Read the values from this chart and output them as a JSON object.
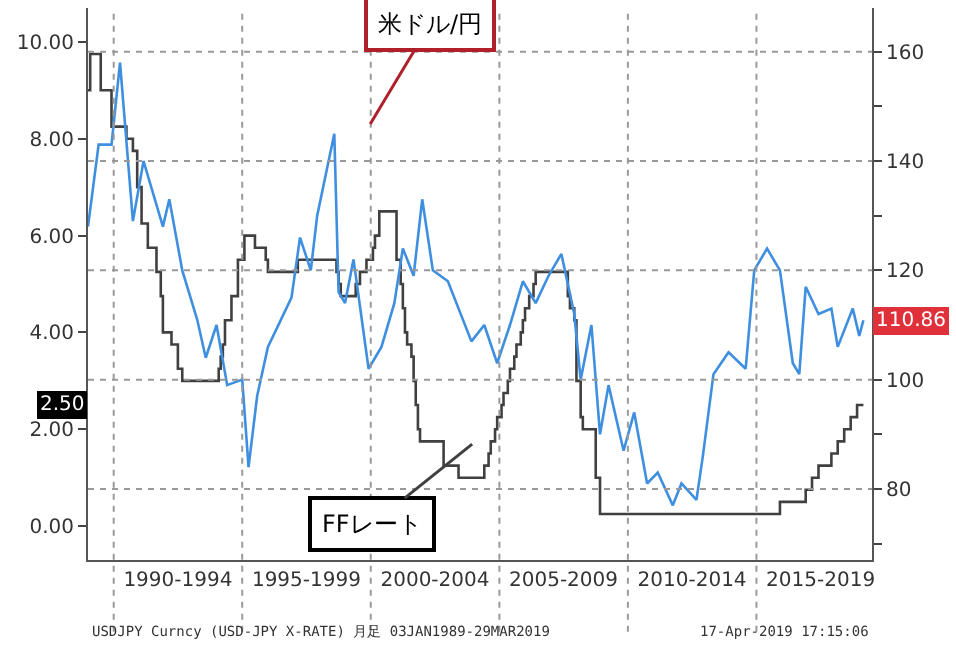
{
  "chart_data": {
    "type": "line",
    "xlim": [
      "1989-01",
      "2019-07"
    ],
    "xticks": [
      {
        "value": "1990-01",
        "label": null
      },
      {
        "value": "1992-07",
        "label": "1990-1994"
      },
      {
        "value": "1995-01",
        "label": null
      },
      {
        "value": "1997-07",
        "label": "1995-1999"
      },
      {
        "value": "2000-01",
        "label": null
      },
      {
        "value": "2002-07",
        "label": "2000-2004"
      },
      {
        "value": "2005-01",
        "label": null
      },
      {
        "value": "2007-07",
        "label": "2005-2009"
      },
      {
        "value": "2010-01",
        "label": null
      },
      {
        "value": "2012-07",
        "label": "2010-2014"
      },
      {
        "value": "2015-01",
        "label": null
      },
      {
        "value": "2017-07",
        "label": "2015-2019"
      }
    ],
    "ylim": [
      -0.7,
      10.7
    ],
    "yticks": [
      {
        "value": 0,
        "label": "0.00"
      },
      {
        "value": 2,
        "label": "2.00"
      },
      {
        "value": 4,
        "label": "4.00"
      },
      {
        "value": 6,
        "label": "6.00"
      },
      {
        "value": 8,
        "label": "8.00"
      },
      {
        "value": 10,
        "label": "10.00"
      }
    ],
    "y2lim": [
      67,
      168
    ],
    "y2ticks": [
      {
        "value": 70,
        "label": null
      },
      80,
      {
        "value": 90,
        "label": null
      },
      100,
      {
        "value": 110,
        "label": null
      },
      120,
      {
        "value": 130,
        "label": null
      },
      140,
      {
        "value": 150,
        "label": null
      },
      160
    ],
    "grid": true,
    "series": [
      {
        "axis": "y2",
        "color": "#3f8fe0",
        "x": [
          "1989-01",
          "1989-06",
          "1989-12",
          "1990-04",
          "1990-10",
          "1991-03",
          "1991-12",
          "1992-03",
          "1992-09",
          "1993-04",
          "1993-08",
          "1994-01",
          "1994-06",
          "1995-01",
          "1995-04",
          "1995-08",
          "1996-01",
          "1996-12",
          "1997-04",
          "1997-09",
          "1997-12",
          "1998-08",
          "1998-10",
          "1999-01",
          "1999-05",
          "1999-12",
          "2000-06",
          "2000-12",
          "2001-04",
          "2001-09",
          "2002-01",
          "2002-06",
          "2003-01",
          "2003-12",
          "2004-06",
          "2004-12",
          "2005-06",
          "2005-12",
          "2006-06",
          "2006-12",
          "2007-06",
          "2007-12",
          "2008-03",
          "2008-08",
          "2008-12",
          "2009-04",
          "2009-11",
          "2010-04",
          "2010-10",
          "2011-03",
          "2011-10",
          "2012-02",
          "2012-09",
          "2012-12",
          "2013-05",
          "2013-12",
          "2014-08",
          "2014-12",
          "2015-06",
          "2015-12",
          "2016-06",
          "2016-09",
          "2016-12",
          "2017-06",
          "2017-12",
          "2018-03",
          "2018-10",
          "2019-01",
          "2019-03"
        ],
        "values": [
          128,
          143,
          143,
          158,
          129,
          140,
          128,
          133,
          120,
          111,
          104,
          110,
          99,
          100,
          84,
          97,
          106,
          115,
          126,
          120,
          130,
          145,
          116,
          114,
          122,
          102,
          106,
          114,
          124,
          119,
          133,
          120,
          118,
          107,
          110,
          103,
          110,
          118,
          114,
          119,
          123,
          112,
          100,
          110,
          90,
          99,
          87,
          94,
          81,
          83,
          77,
          81,
          78,
          86,
          101,
          105,
          102,
          120,
          124,
          120,
          103,
          101,
          117,
          112,
          113,
          106,
          113,
          108,
          110.86
        ]
      },
      {
        "type": "step",
        "color": "#404040",
        "x": [
          "1989-01",
          "1989-02",
          "1989-07",
          "1989-12",
          "1990-07",
          "1990-10",
          "1990-12",
          "1991-02",
          "1991-05",
          "1991-09",
          "1991-11",
          "1991-12",
          "1992-04",
          "1992-07",
          "1992-09",
          "1994-02",
          "1994-03",
          "1994-04",
          "1994-05",
          "1994-08",
          "1994-11",
          "1995-02",
          "1995-07",
          "1995-12",
          "1996-01",
          "1997-03",
          "1998-09",
          "1998-10",
          "1998-11",
          "1999-06",
          "1999-08",
          "1999-11",
          "2000-02",
          "2000-03",
          "2000-05",
          "2001-01",
          "2001-03",
          "2001-04",
          "2001-05",
          "2001-06",
          "2001-08",
          "2001-09",
          "2001-10",
          "2001-11",
          "2001-12",
          "2002-11",
          "2003-06",
          "2004-06",
          "2004-08",
          "2004-09",
          "2004-11",
          "2004-12",
          "2005-02",
          "2005-03",
          "2005-05",
          "2005-06",
          "2005-08",
          "2005-09",
          "2005-11",
          "2005-12",
          "2006-01",
          "2006-03",
          "2006-05",
          "2006-06",
          "2007-09",
          "2007-10",
          "2007-12",
          "2008-01",
          "2008-03",
          "2008-04",
          "2008-10",
          "2008-12",
          "2015-12",
          "2016-12",
          "2017-03",
          "2017-06",
          "2017-12",
          "2018-03",
          "2018-06",
          "2018-09",
          "2018-12",
          "2019-03"
        ],
        "values": [
          9.0,
          9.75,
          9.0,
          8.25,
          8.0,
          7.75,
          7.0,
          6.25,
          5.75,
          5.25,
          4.75,
          4.0,
          3.75,
          3.25,
          3.0,
          3.25,
          3.5,
          3.75,
          4.25,
          4.75,
          5.5,
          6.0,
          5.75,
          5.5,
          5.25,
          5.5,
          5.25,
          5.0,
          4.75,
          5.0,
          5.25,
          5.5,
          5.75,
          6.0,
          6.5,
          5.5,
          5.0,
          4.5,
          4.0,
          3.75,
          3.5,
          3.0,
          2.5,
          2.0,
          1.75,
          1.25,
          1.0,
          1.25,
          1.5,
          1.75,
          2.0,
          2.25,
          2.5,
          2.75,
          3.0,
          3.25,
          3.5,
          3.75,
          4.0,
          4.25,
          4.5,
          4.75,
          5.0,
          5.25,
          4.75,
          4.5,
          4.25,
          3.0,
          2.25,
          2.0,
          1.0,
          0.25,
          0.5,
          0.75,
          1.0,
          1.25,
          1.5,
          1.75,
          2.0,
          2.25,
          2.5,
          2.5
        ]
      }
    ],
    "annotations": [
      "米ドル/円",
      "FFレート",
      "110.86",
      "2.50",
      "USDJPY Curncy (USD-JPY X-RATE) 月足 03JAN1989-29MAR2019",
      "17-Apr-2019 17:15:06"
    ]
  }
}
